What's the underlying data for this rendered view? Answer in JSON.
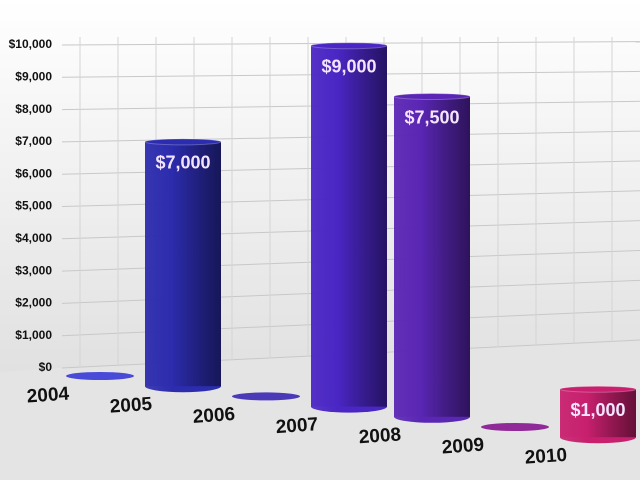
{
  "chart_data": {
    "type": "cylinder-bar",
    "categories": [
      "2004",
      "2005",
      "2006",
      "2007",
      "2008",
      "2009",
      "2010"
    ],
    "values": [
      0,
      7000,
      0,
      9000,
      7500,
      0,
      1000
    ],
    "value_labels": [
      null,
      "$7,000",
      null,
      "$9,000",
      "$7,500",
      null,
      "$1,000"
    ],
    "colors": [
      "#4a4ad8",
      "#2c2cae",
      "#4a3ab8",
      "#4a26c4",
      "#5a26b4",
      "#902a98",
      "#c8206e"
    ],
    "ylim": [
      0,
      10000
    ],
    "yticks": [
      {
        "value": 0,
        "label": "$0"
      },
      {
        "value": 1000,
        "label": "$1,000"
      },
      {
        "value": 2000,
        "label": "$2,000"
      },
      {
        "value": 3000,
        "label": "$3,000"
      },
      {
        "value": 4000,
        "label": "$4,000"
      },
      {
        "value": 5000,
        "label": "$5,000"
      },
      {
        "value": 6000,
        "label": "$6,000"
      },
      {
        "value": 7000,
        "label": "$7,000"
      },
      {
        "value": 8000,
        "label": "$8,000"
      },
      {
        "value": 9000,
        "label": "$9,000"
      },
      {
        "value": 10000,
        "label": "$10,000"
      }
    ],
    "grid": true
  }
}
